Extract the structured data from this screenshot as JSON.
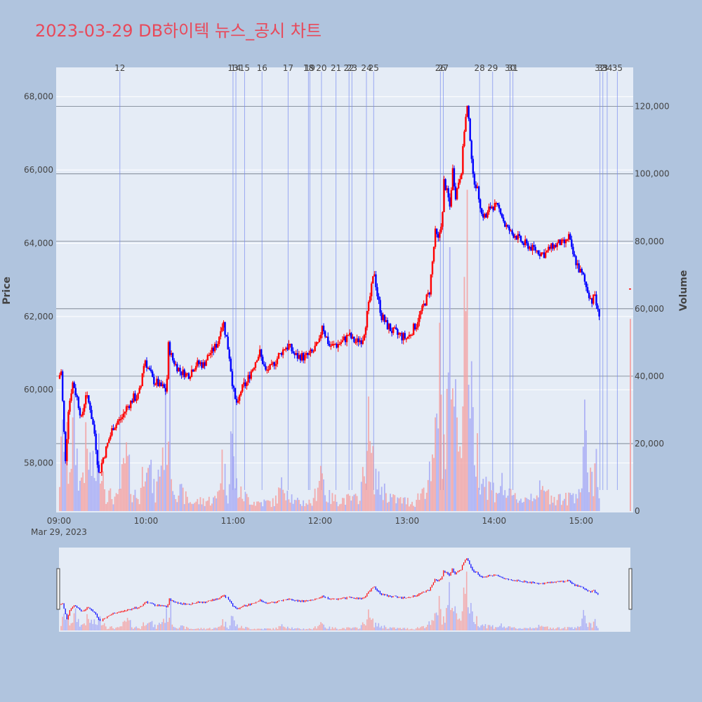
{
  "title": "2023-03-29 DB하이텍 뉴스_공시 차트",
  "chart_data": {
    "type": "candlestick",
    "ylabel": "Price",
    "y2label": "Volume",
    "date_label": "Mar 29, 2023",
    "price_ylim": [
      56650,
      68800
    ],
    "volume_ylim": [
      0,
      132000
    ],
    "price_ticks": [
      "58,000",
      "60,000",
      "62,000",
      "64,000",
      "66,000",
      "68,000"
    ],
    "price_tick_values": [
      58000,
      60000,
      62000,
      64000,
      66000,
      68000
    ],
    "volume_ticks": [
      "0",
      "20,000",
      "40,000",
      "60,000",
      "80,000",
      "100,000",
      "120,000"
    ],
    "volume_tick_values": [
      0,
      20000,
      40000,
      60000,
      80000,
      100000,
      120000
    ],
    "time_ticks": [
      "09:00",
      "10:00",
      "11:00",
      "12:00",
      "13:00",
      "14:00",
      "15:00"
    ],
    "time_tick_minutes": [
      0,
      60,
      120,
      180,
      240,
      300,
      360
    ],
    "time_range_minutes": [
      0,
      394
    ],
    "up_color": "#ff0000",
    "down_color": "#0000ff",
    "price_anchors": [
      [
        0,
        60300
      ],
      [
        2,
        60500
      ],
      [
        5,
        58000
      ],
      [
        7,
        59500
      ],
      [
        10,
        60200
      ],
      [
        13,
        59800
      ],
      [
        16,
        59200
      ],
      [
        19,
        59900
      ],
      [
        22,
        59500
      ],
      [
        25,
        58800
      ],
      [
        28,
        57700
      ],
      [
        30,
        58000
      ],
      [
        33,
        58400
      ],
      [
        38,
        59000
      ],
      [
        43,
        59200
      ],
      [
        47,
        59500
      ],
      [
        52,
        59800
      ],
      [
        55,
        59800
      ],
      [
        57,
        60100
      ],
      [
        58,
        60500
      ],
      [
        60,
        60800
      ],
      [
        62,
        60600
      ],
      [
        65,
        60300
      ],
      [
        70,
        60100
      ],
      [
        74,
        60000
      ],
      [
        75,
        60300
      ],
      [
        76,
        61200
      ],
      [
        79,
        60800
      ],
      [
        84,
        60500
      ],
      [
        90,
        60400
      ],
      [
        95,
        60700
      ],
      [
        100,
        60700
      ],
      [
        105,
        61000
      ],
      [
        110,
        61300
      ],
      [
        112,
        61700
      ],
      [
        114,
        61800
      ],
      [
        116,
        61400
      ],
      [
        118,
        60900
      ],
      [
        120,
        60200
      ],
      [
        122,
        59700
      ],
      [
        124,
        59600
      ],
      [
        126,
        60000
      ],
      [
        130,
        60200
      ],
      [
        133,
        60500
      ],
      [
        137,
        60900
      ],
      [
        139,
        61000
      ],
      [
        143,
        60500
      ],
      [
        147,
        60600
      ],
      [
        150,
        60800
      ],
      [
        155,
        61100
      ],
      [
        159,
        61200
      ],
      [
        162,
        61000
      ],
      [
        165,
        60900
      ],
      [
        170,
        60900
      ],
      [
        175,
        61000
      ],
      [
        180,
        61300
      ],
      [
        182,
        61800
      ],
      [
        184,
        61500
      ],
      [
        187,
        61200
      ],
      [
        190,
        61200
      ],
      [
        195,
        61300
      ],
      [
        198,
        61400
      ],
      [
        200,
        61500
      ],
      [
        205,
        61300
      ],
      [
        210,
        61400
      ],
      [
        212,
        61800
      ],
      [
        214,
        62300
      ],
      [
        216,
        62800
      ],
      [
        218,
        63200
      ],
      [
        220,
        62600
      ],
      [
        223,
        62000
      ],
      [
        226,
        61800
      ],
      [
        230,
        61600
      ],
      [
        235,
        61500
      ],
      [
        240,
        61400
      ],
      [
        244,
        61600
      ],
      [
        247,
        61800
      ],
      [
        250,
        62100
      ],
      [
        253,
        62400
      ],
      [
        256,
        62700
      ],
      [
        258,
        63500
      ],
      [
        260,
        64300
      ],
      [
        262,
        64100
      ],
      [
        265,
        64800
      ],
      [
        266,
        65700
      ],
      [
        268,
        65400
      ],
      [
        270,
        65000
      ],
      [
        272,
        66000
      ],
      [
        274,
        65300
      ],
      [
        276,
        65700
      ],
      [
        278,
        66000
      ],
      [
        280,
        67100
      ],
      [
        282,
        67700
      ],
      [
        284,
        66900
      ],
      [
        286,
        65800
      ],
      [
        288,
        65600
      ],
      [
        290,
        65300
      ],
      [
        292,
        64800
      ],
      [
        295,
        64700
      ],
      [
        298,
        65000
      ],
      [
        302,
        65000
      ],
      [
        305,
        64900
      ],
      [
        308,
        64500
      ],
      [
        312,
        64300
      ],
      [
        316,
        64200
      ],
      [
        320,
        64000
      ],
      [
        325,
        63900
      ],
      [
        330,
        63800
      ],
      [
        335,
        63700
      ],
      [
        340,
        63900
      ],
      [
        345,
        64000
      ],
      [
        350,
        64000
      ],
      [
        352,
        64200
      ],
      [
        354,
        63800
      ],
      [
        356,
        63600
      ],
      [
        358,
        63400
      ],
      [
        360,
        63200
      ],
      [
        362,
        63100
      ],
      [
        364,
        62800
      ],
      [
        366,
        62600
      ],
      [
        368,
        62400
      ],
      [
        370,
        62600
      ],
      [
        372,
        62100
      ]
    ],
    "volume_anchors": [
      [
        0,
        12000
      ],
      [
        3,
        30000
      ],
      [
        6,
        15000
      ],
      [
        10,
        28000
      ],
      [
        14,
        9000
      ],
      [
        18,
        20000
      ],
      [
        24,
        12000
      ],
      [
        28,
        22000
      ],
      [
        32,
        6000
      ],
      [
        40,
        4000
      ],
      [
        46,
        18000
      ],
      [
        50,
        7000
      ],
      [
        55,
        4000
      ],
      [
        58,
        16000
      ],
      [
        60,
        30000
      ],
      [
        62,
        14000
      ],
      [
        66,
        5000
      ],
      [
        76,
        38000
      ],
      [
        78,
        9000
      ],
      [
        90,
        3000
      ],
      [
        108,
        4000
      ],
      [
        112,
        17000
      ],
      [
        116,
        6000
      ],
      [
        118,
        28000
      ],
      [
        121,
        10000
      ],
      [
        124,
        6000
      ],
      [
        135,
        3000
      ],
      [
        148,
        3000
      ],
      [
        155,
        10000
      ],
      [
        162,
        3000
      ],
      [
        175,
        3000
      ],
      [
        180,
        16000
      ],
      [
        184,
        5000
      ],
      [
        190,
        4000
      ],
      [
        205,
        4000
      ],
      [
        210,
        12000
      ],
      [
        212,
        32000
      ],
      [
        214,
        22000
      ],
      [
        216,
        15000
      ],
      [
        220,
        9000
      ],
      [
        230,
        4000
      ],
      [
        245,
        3000
      ],
      [
        258,
        14000
      ],
      [
        260,
        38000
      ],
      [
        262,
        44000
      ],
      [
        264,
        26000
      ],
      [
        266,
        20000
      ],
      [
        270,
        72000
      ],
      [
        272,
        40000
      ],
      [
        274,
        30000
      ],
      [
        276,
        26000
      ],
      [
        280,
        85000
      ],
      [
        282,
        70000
      ],
      [
        284,
        34000
      ],
      [
        286,
        25000
      ],
      [
        290,
        14000
      ],
      [
        295,
        9000
      ],
      [
        300,
        7000
      ],
      [
        305,
        9000
      ],
      [
        310,
        5000
      ],
      [
        320,
        4000
      ],
      [
        330,
        7000
      ],
      [
        340,
        5000
      ],
      [
        350,
        4000
      ],
      [
        360,
        9000
      ],
      [
        362,
        25000
      ],
      [
        364,
        12000
      ],
      [
        366,
        16000
      ],
      [
        368,
        8000
      ],
      [
        370,
        22000
      ],
      [
        372,
        10000
      ]
    ],
    "news_markers": [
      {
        "label": "12",
        "minute": 42
      },
      {
        "label": "13",
        "minute": 120
      },
      {
        "label": "14",
        "minute": 122
      },
      {
        "label": "15",
        "minute": 128
      },
      {
        "label": "16",
        "minute": 140
      },
      {
        "label": "17",
        "minute": 158
      },
      {
        "label": "18",
        "minute": 172
      },
      {
        "label": "19",
        "minute": 173
      },
      {
        "label": "20",
        "minute": 181
      },
      {
        "label": "21",
        "minute": 191
      },
      {
        "label": "22",
        "minute": 200
      },
      {
        "label": "23",
        "minute": 202
      },
      {
        "label": "24",
        "minute": 212
      },
      {
        "label": "25",
        "minute": 217
      },
      {
        "label": "26",
        "minute": 263
      },
      {
        "label": "27",
        "minute": 265
      },
      {
        "label": "28",
        "minute": 290
      },
      {
        "label": "29",
        "minute": 299
      },
      {
        "label": "30",
        "minute": 311
      },
      {
        "label": "31",
        "minute": 313
      },
      {
        "label": "32",
        "minute": 373
      },
      {
        "label": "33",
        "minute": 375
      },
      {
        "label": "34",
        "minute": 378
      },
      {
        "label": "35",
        "minute": 385
      }
    ]
  }
}
